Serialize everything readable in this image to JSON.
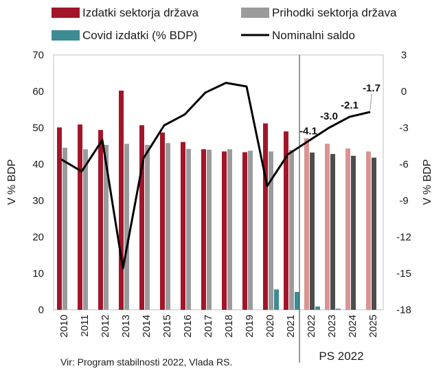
{
  "chart_data": {
    "type": "bar",
    "categories": [
      "2010",
      "2011",
      "2012",
      "2013",
      "2014",
      "2015",
      "2016",
      "2017",
      "2018",
      "2019",
      "2020",
      "2021",
      "2022",
      "2023",
      "2024",
      "2025"
    ],
    "series": [
      {
        "name": "Izdatki sektorja država",
        "axis": "left",
        "type": "bar",
        "color": "#a3152a",
        "color_projection": "#d99393",
        "values": [
          50.1,
          50.9,
          49.4,
          60.2,
          50.7,
          48.7,
          46.1,
          44.1,
          43.5,
          43.3,
          51.2,
          49.0,
          47.1,
          45.6,
          44.3,
          43.5
        ]
      },
      {
        "name": "Prihodki sektorja država",
        "axis": "left",
        "type": "bar",
        "color": "#9b9b9b",
        "color_projection": "#4d4d4d",
        "values": [
          44.5,
          44.1,
          45.3,
          45.6,
          45.3,
          45.8,
          44.2,
          44.0,
          44.1,
          43.7,
          43.5,
          43.9,
          43.2,
          42.8,
          42.3,
          41.8
        ]
      },
      {
        "name": "Covid izdatki (% BDP)",
        "axis": "left",
        "type": "bar",
        "color": "#3e8c93",
        "values": [
          null,
          null,
          null,
          null,
          null,
          null,
          null,
          null,
          null,
          null,
          5.6,
          4.9,
          0.9,
          0.3,
          null,
          null
        ]
      },
      {
        "name": "Nominalni saldo",
        "axis": "right",
        "type": "line",
        "color": "#000000",
        "values": [
          -5.6,
          -6.6,
          -4.0,
          -14.6,
          -5.5,
          -2.8,
          -1.9,
          -0.1,
          0.7,
          0.4,
          -7.8,
          -5.2,
          -4.1,
          -3.0,
          -2.1,
          -1.7
        ]
      }
    ],
    "data_labels": [
      "-4.1",
      "-3.0",
      "-2.1",
      "-1.7"
    ],
    "yleft": {
      "label": "V % BDP",
      "ylim": [
        0,
        70
      ],
      "ticks": [
        "0",
        "10",
        "20",
        "30",
        "40",
        "50",
        "60",
        "70"
      ]
    },
    "yright": {
      "label": "V % BDP",
      "ylim": [
        -18,
        3
      ],
      "ticks": [
        "-18",
        "-15",
        "-12",
        "-9",
        "-6",
        "-3",
        "0",
        "3"
      ]
    },
    "projection_label": "PS 2022",
    "legend_position": "top",
    "grid": false
  },
  "source_text": "Vir: Program stabilnosti 2022, Vlada RS."
}
